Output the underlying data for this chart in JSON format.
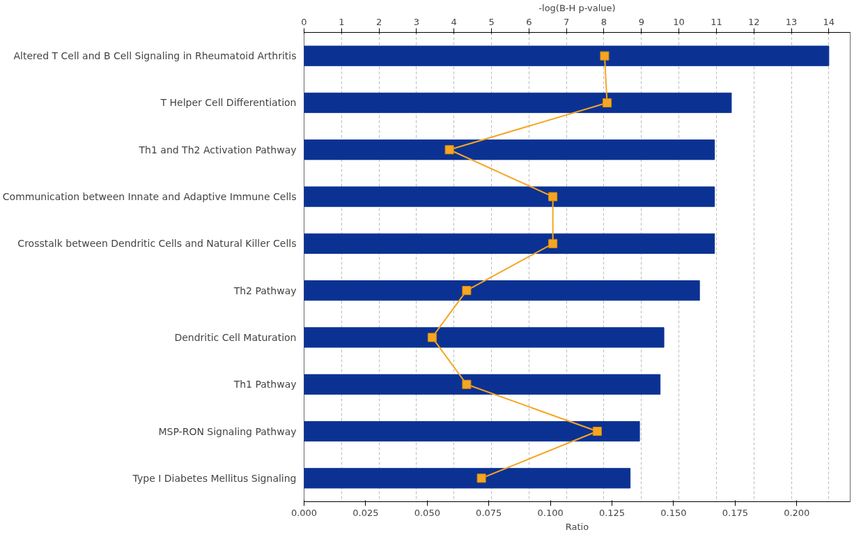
{
  "chart_data": {
    "type": "bar",
    "orientation": "horizontal",
    "categories": [
      "Altered T Cell and B Cell Signaling in Rheumatoid Arthritis",
      "T Helper Cell Differentiation",
      "Th1 and Th2 Activation Pathway",
      "Communication between Innate and Adaptive Immune Cells",
      "Crosstalk between Dendritic Cells and Natural Killer Cells",
      "Th2 Pathway",
      "Dendritic Cell Maturation",
      "Th1 Pathway",
      "MSP-RON Signaling Pathway",
      "Type I Diabetes Mellitus Signaling"
    ],
    "series": [
      {
        "axis": "x2",
        "color": "#0b3293",
        "values": [
          14.0,
          11.4,
          10.95,
          10.95,
          10.95,
          10.55,
          9.6,
          9.5,
          8.95,
          8.7
        ]
      },
      {
        "type": "line",
        "color": "#f5a623",
        "marker": "square",
        "values": [
          0.122,
          0.123,
          0.059,
          0.101,
          0.101,
          0.066,
          0.052,
          0.066,
          0.119,
          0.072
        ]
      }
    ],
    "xlabel": "Ratio",
    "x2label": "-log(B-H p-value)",
    "xlim": [
      0,
      0.2217
    ],
    "xticks": [
      {
        "value": 0,
        "label": "0.000"
      },
      {
        "value": 0.025,
        "label": "0.025"
      },
      {
        "value": 0.05,
        "label": "0.050"
      },
      {
        "value": 0.075,
        "label": "0.075"
      },
      {
        "value": 0.1,
        "label": "0.100"
      },
      {
        "value": 0.125,
        "label": "0.125"
      },
      {
        "value": 0.15,
        "label": "0.150"
      },
      {
        "value": 0.175,
        "label": "0.175"
      },
      {
        "value": 0.2,
        "label": "0.200"
      }
    ],
    "x2lim": [
      0,
      14.57
    ],
    "x2ticks": [
      0,
      1,
      2,
      3,
      4,
      5,
      6,
      7,
      8,
      9,
      10,
      11,
      12,
      13,
      14
    ],
    "grid": "x"
  }
}
